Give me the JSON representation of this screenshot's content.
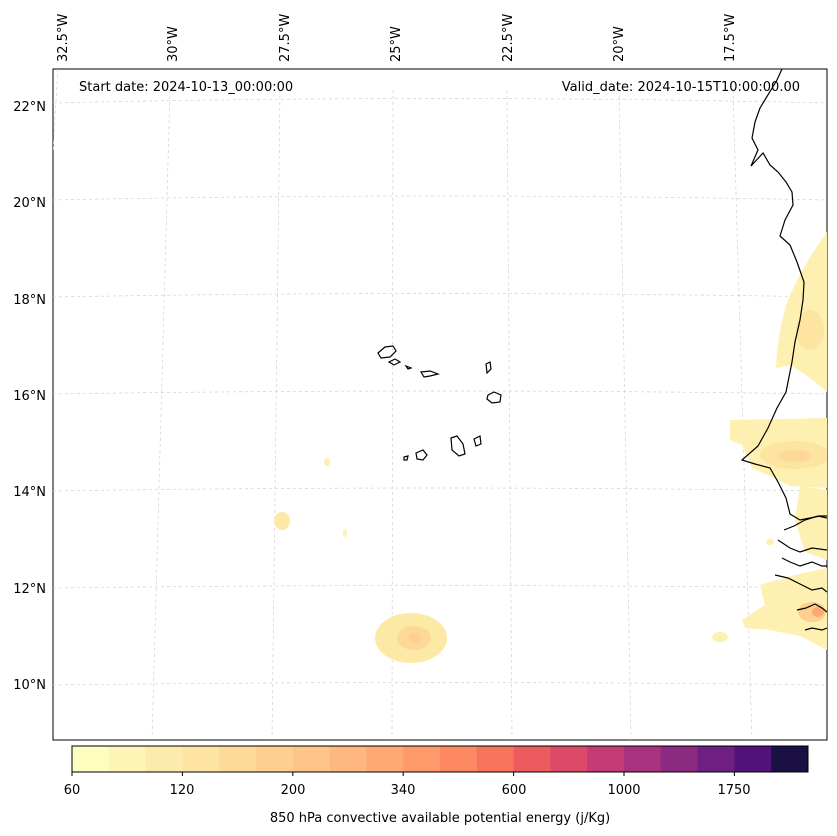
{
  "header": {
    "start_date": "Start date: 2024-10-13_00:00:00",
    "valid_date": "Valid_date: 2024-10-15T10:00:00.00"
  },
  "map": {
    "lon_labels": [
      "32.5°W",
      "30°W",
      "27.5°W",
      "25°W",
      "22.5°W",
      "20°W",
      "17.5°W"
    ],
    "lat_labels": [
      "22°N",
      "20°N",
      "18°N",
      "16°N",
      "14°N",
      "12°N",
      "10°N"
    ],
    "gridlines": true
  },
  "colorbar": {
    "label": "850 hPa convective available potential energy (j/Kg)",
    "tick_labels": [
      "60",
      "120",
      "200",
      "340",
      "600",
      "1000",
      "1750"
    ],
    "colors": [
      "#fcfdbf",
      "#fcf5b6",
      "#fcebac",
      "#fde4a1",
      "#fdd997",
      "#fecf8e",
      "#fec488",
      "#feb77e",
      "#fea873",
      "#fe9a6a",
      "#fc8961",
      "#f7735c",
      "#ee5b5e",
      "#dd4a69",
      "#c43c75",
      "#a8327d",
      "#8c2981",
      "#6e1f81",
      "#511379",
      "#1b1044"
    ]
  }
}
